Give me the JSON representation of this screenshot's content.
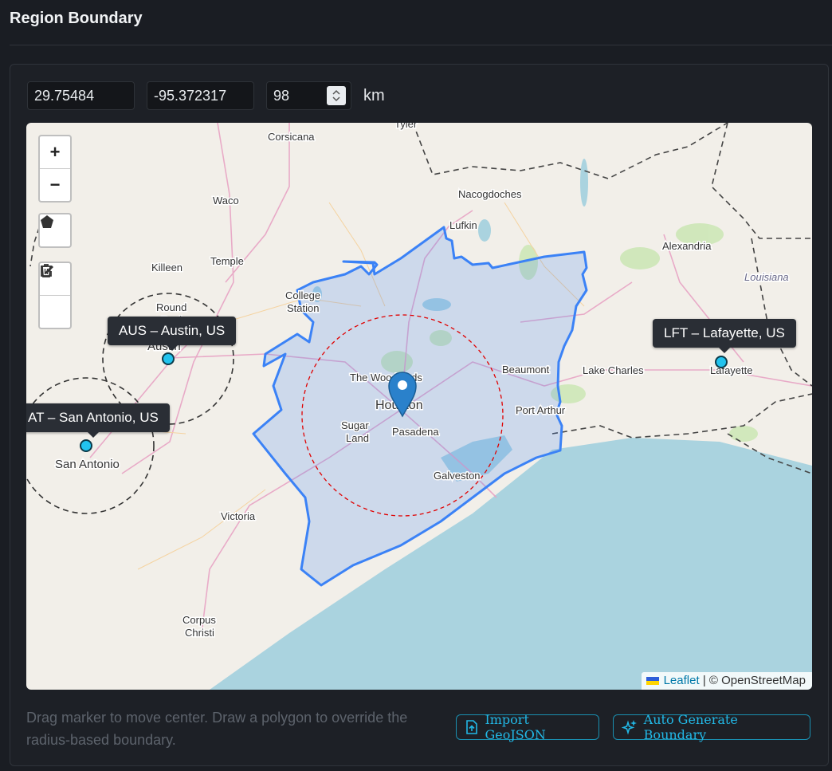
{
  "page": {
    "title": "Region Boundary"
  },
  "form": {
    "latitude": "29.75484",
    "longitude": "-95.372317",
    "radius": "98",
    "radius_unit": "km"
  },
  "map": {
    "zoom_in_label": "+",
    "zoom_out_label": "−",
    "tools": [
      "polygon-draw-icon",
      "edit-icon",
      "trash-icon"
    ],
    "airports": [
      {
        "label": "AUS – Austin, US"
      },
      {
        "label": "LFT – Lafayette, US"
      },
      {
        "label": "AT – San Antonio, US"
      }
    ],
    "center_marker": "map-pin-icon",
    "boundary_color": "#3b82f6",
    "radius_circle_color": "#e00000",
    "place_labels": {
      "tyler": "Tyler",
      "corsicana": "Corsicana",
      "waco": "Waco",
      "nacogdoches": "Nacogdoches",
      "lufkin": "Lufkin",
      "alexandria": "Alexandria",
      "louisiana": "Louisiana",
      "killeen": "Killeen",
      "temple": "Temple",
      "college_station": "College\nStation",
      "round_rock": "Round\nRock",
      "austin": "Austin",
      "the_woodlands": "The Woodlands",
      "houston": "Houston",
      "beaumont": "Beaumont",
      "lake_charles": "Lake Charles",
      "lafayette": "Lafayette",
      "port_arthur": "Port Arthur",
      "sugar_land": "Sugar\nLand",
      "pasadena": "Pasadena",
      "galveston": "Galveston",
      "san_antonio": "San Antonio",
      "victoria": "Victoria",
      "corpus_christi": "Corpus\nChristi"
    },
    "attribution": {
      "leaflet": "Leaflet",
      "osm": "| © OpenStreetMap"
    }
  },
  "footer": {
    "hint": "Drag marker to move center. Draw a polygon to override the radius-based boundary.",
    "import_label": "Import GeoJSON",
    "auto_label": "Auto Generate Boundary"
  }
}
